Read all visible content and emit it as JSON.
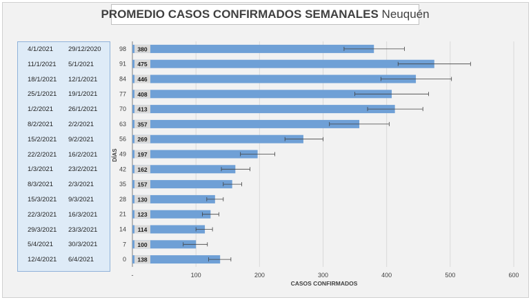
{
  "title": {
    "main": "PROMEDIO CASOS CONFIRMADOS SEMANALES",
    "sub": "Neuquén"
  },
  "date_table": [
    [
      "4/1/2021",
      "29/12/2020"
    ],
    [
      "11/1/2021",
      "5/1/2021"
    ],
    [
      "18/1/2021",
      "12/1/2021"
    ],
    [
      "25/1/2021",
      "19/1/2021"
    ],
    [
      "1/2/2021",
      "26/1/2021"
    ],
    [
      "8/2/2021",
      "2/2/2021"
    ],
    [
      "15/2/2021",
      "9/2/2021"
    ],
    [
      "22/2/2021",
      "16/2/2021"
    ],
    [
      "1/3/2021",
      "23/2/2021"
    ],
    [
      "8/3/2021",
      "2/3/2021"
    ],
    [
      "15/3/2021",
      "9/3/2021"
    ],
    [
      "22/3/2021",
      "16/3/2021"
    ],
    [
      "29/3/2021",
      "23/3/2021"
    ],
    [
      "5/4/2021",
      "30/3/2021"
    ],
    [
      "12/4/2021",
      "6/4/2021"
    ]
  ],
  "chart_data": {
    "type": "bar",
    "orientation": "horizontal",
    "title": "PROMEDIO CASOS CONFIRMADOS SEMANALES Neuquén",
    "xlabel": "CASOS CONFIRMADOS",
    "ylabel": "DÍAS",
    "xlim": [
      0,
      600
    ],
    "x_ticks": [
      "-",
      "100",
      "200",
      "300",
      "400",
      "500",
      "600"
    ],
    "categories": [
      "98",
      "91",
      "84",
      "77",
      "70",
      "63",
      "56",
      "49",
      "42",
      "35",
      "28",
      "21",
      "14",
      "7",
      "0"
    ],
    "values": [
      380,
      475,
      446,
      408,
      413,
      357,
      269,
      197,
      162,
      157,
      130,
      123,
      114,
      100,
      138
    ],
    "error_low": [
      333,
      418,
      391,
      350,
      370,
      310,
      240,
      170,
      140,
      143,
      117,
      110,
      100,
      80,
      120
    ],
    "error_high": [
      428,
      532,
      502,
      466,
      457,
      404,
      300,
      224,
      185,
      172,
      143,
      136,
      126,
      118,
      155
    ],
    "bar_color": "#6fa0d6",
    "label_bg": "#d9d9d9",
    "grid": true,
    "legend": "none"
  }
}
